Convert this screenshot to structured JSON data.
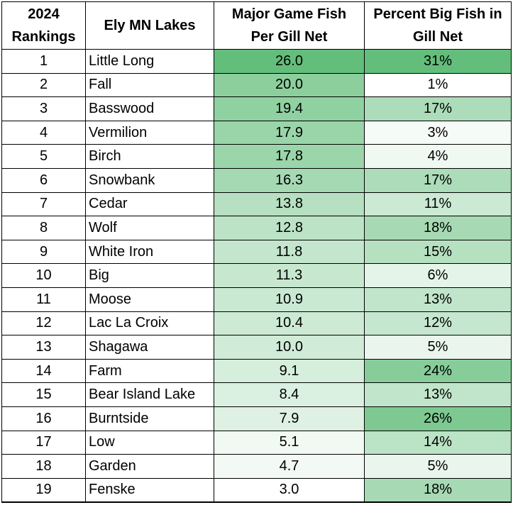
{
  "table": {
    "headers": [
      {
        "line1": "2024",
        "line2": "Rankings"
      },
      {
        "line1": "Ely MN Lakes",
        "line2": ""
      },
      {
        "line1": "Major Game Fish",
        "line2": "Per Gill Net"
      },
      {
        "line1": "Percent Big Fish in",
        "line2": "Gill Net"
      }
    ],
    "rows": [
      {
        "rank": "1",
        "lake": "Little Long",
        "fish": "26.0",
        "big": "31%"
      },
      {
        "rank": "2",
        "lake": "Fall",
        "fish": "20.0",
        "big": "1%"
      },
      {
        "rank": "3",
        "lake": "Basswood",
        "fish": "19.4",
        "big": "17%"
      },
      {
        "rank": "4",
        "lake": "Vermilion",
        "fish": "17.9",
        "big": "3%"
      },
      {
        "rank": "5",
        "lake": "Birch",
        "fish": "17.8",
        "big": "4%"
      },
      {
        "rank": "6",
        "lake": "Snowbank",
        "fish": "16.3",
        "big": "17%"
      },
      {
        "rank": "7",
        "lake": "Cedar",
        "fish": "13.8",
        "big": "11%"
      },
      {
        "rank": "8",
        "lake": "Wolf",
        "fish": "12.8",
        "big": "18%"
      },
      {
        "rank": "9",
        "lake": "White Iron",
        "fish": "11.8",
        "big": "15%"
      },
      {
        "rank": "10",
        "lake": "Big",
        "fish": "11.3",
        "big": "6%"
      },
      {
        "rank": "11",
        "lake": "Moose",
        "fish": "10.9",
        "big": "13%"
      },
      {
        "rank": "12",
        "lake": "Lac La Croix",
        "fish": "10.4",
        "big": "12%"
      },
      {
        "rank": "13",
        "lake": "Shagawa",
        "fish": "10.0",
        "big": "5%"
      },
      {
        "rank": "14",
        "lake": "Farm",
        "fish": "9.1",
        "big": "24%"
      },
      {
        "rank": "15",
        "lake": "Bear Island Lake",
        "fish": "8.4",
        "big": "13%"
      },
      {
        "rank": "16",
        "lake": "Burntside",
        "fish": "7.9",
        "big": "26%"
      },
      {
        "rank": "17",
        "lake": "Low",
        "fish": "5.1",
        "big": "14%"
      },
      {
        "rank": "18",
        "lake": "Garden",
        "fish": "4.7",
        "big": "5%"
      },
      {
        "rank": "19",
        "lake": "Fenske",
        "fish": "3.0",
        "big": "18%"
      }
    ]
  },
  "colors": {
    "scale_low": "#ffffff",
    "scale_high": "#63be7b",
    "border": "#000000"
  }
}
